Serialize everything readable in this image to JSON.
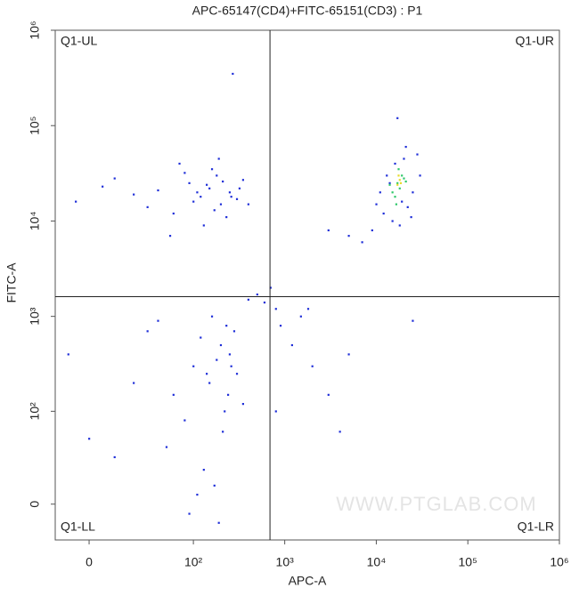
{
  "chart_data": {
    "type": "scatter",
    "title": "APC-65147(CD4)+FITC-65151(CD3) : P1",
    "x_label": "APC-A",
    "y_label": "FITC-A",
    "xscale": "asinh",
    "yscale": "asinh",
    "xlim": [
      -14,
      1000000
    ],
    "ylim": [
      -21,
      1000000
    ],
    "xticks": [
      0,
      {
        "value": 100,
        "label": "10²"
      },
      {
        "value": 1000,
        "label": "10³"
      },
      {
        "value": 10000,
        "label": "10⁴"
      },
      {
        "value": 100000,
        "label": "10⁵"
      },
      {
        "value": 1000000,
        "label": "10⁶"
      }
    ],
    "yticks": [
      0,
      {
        "value": 100,
        "label": "10²"
      },
      {
        "value": 1000,
        "label": "10³"
      },
      {
        "value": 10000,
        "label": "10⁴"
      },
      {
        "value": 100000,
        "label": "10⁵"
      },
      {
        "value": 1000000,
        "label": "10⁶"
      }
    ],
    "gates": {
      "x": 690,
      "y": 1610
    },
    "quadrant_labels": [
      "Q1-UL",
      "Q1-UR",
      "Q1-LL",
      "Q1-LR"
    ],
    "watermark": "WWW.PTGLAB.COM",
    "series": [
      {
        "color": "#1f2fd8",
        "x": [
          120,
          150,
          200,
          90,
          250,
          300,
          180,
          60,
          40,
          20,
          5,
          -5,
          10,
          30,
          80,
          110,
          140,
          170,
          210,
          260,
          320,
          400,
          70,
          130,
          160,
          230,
          350,
          190,
          100,
          55,
          12000,
          15000,
          18000,
          22000,
          25000,
          30000,
          14000,
          20000,
          10000,
          9000,
          16000,
          28000,
          11000,
          24000,
          5000,
          7000,
          3000,
          19000,
          21000,
          13000,
          100,
          150,
          200,
          250,
          300,
          60,
          80,
          120,
          180,
          220,
          280,
          40,
          20,
          0,
          -8,
          10,
          130,
          170,
          240,
          350,
          90,
          110,
          160,
          210,
          260,
          50,
          30,
          140,
          190,
          230,
          1200,
          2000,
          1500,
          3000,
          900,
          4000,
          25000,
          1800,
          800,
          5000,
          400,
          500,
          600,
          700,
          800,
          270,
          17000
        ],
        "y": [
          18000,
          22000,
          15000,
          25000,
          20000,
          17000,
          30000,
          12000,
          21000,
          19000,
          23000,
          16000,
          28000,
          14000,
          32000,
          20000,
          24000,
          13000,
          26000,
          18000,
          22000,
          15000,
          40000,
          9000,
          35000,
          11000,
          27000,
          45000,
          16000,
          7000,
          12000,
          10000,
          9000,
          14000,
          20000,
          30000,
          25000,
          45000,
          15000,
          8000,
          40000,
          50000,
          20000,
          11000,
          7000,
          6000,
          8000,
          16000,
          60000,
          30000,
          300,
          200,
          500,
          400,
          250,
          150,
          80,
          600,
          350,
          100,
          700,
          900,
          200,
          50,
          400,
          30,
          20,
          10,
          150,
          120,
          -5,
          5,
          1000,
          60,
          300,
          40,
          700,
          250,
          -10,
          800,
          500,
          300,
          1000,
          150,
          800,
          60,
          900,
          1200,
          100,
          400,
          1500,
          1700,
          1400,
          2000,
          1200,
          350000,
          120000
        ]
      },
      {
        "color": "#2fc86a",
        "x": [
          15000,
          17000,
          19000,
          16000,
          18000,
          20000,
          14000,
          21000,
          17500,
          16500
        ],
        "y": [
          20000,
          25000,
          30000,
          18000,
          22000,
          28000,
          24000,
          26000,
          35000,
          15000
        ]
      },
      {
        "color": "#e6dc2a",
        "x": [
          17000,
          18000,
          18500,
          17500
        ],
        "y": [
          24000,
          27000,
          25000,
          30000
        ]
      }
    ]
  }
}
